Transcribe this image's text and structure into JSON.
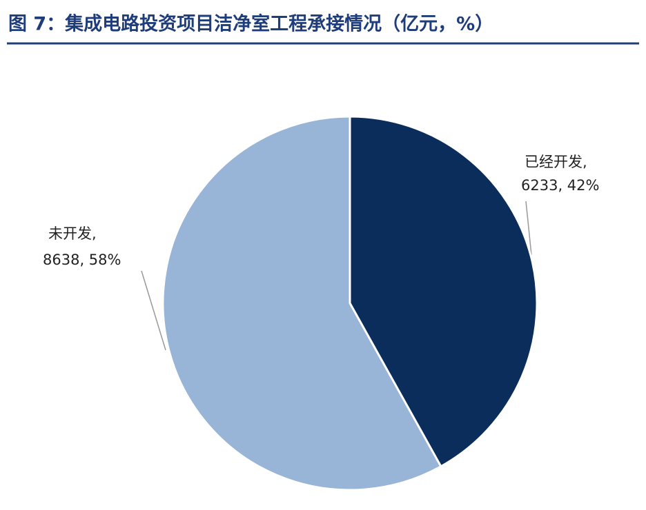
{
  "chart_data": {
    "type": "pie",
    "title": "图 7：集成电路投资项目洁净室工程承接情况（亿元，%）",
    "categories": [
      "已经开发,",
      "未开发,"
    ],
    "values": [
      6233,
      8638
    ],
    "value_labels": [
      "6233, 42%",
      "8638, 58%"
    ],
    "colors": [
      "#0b2d5b",
      "#98b4d6"
    ]
  }
}
